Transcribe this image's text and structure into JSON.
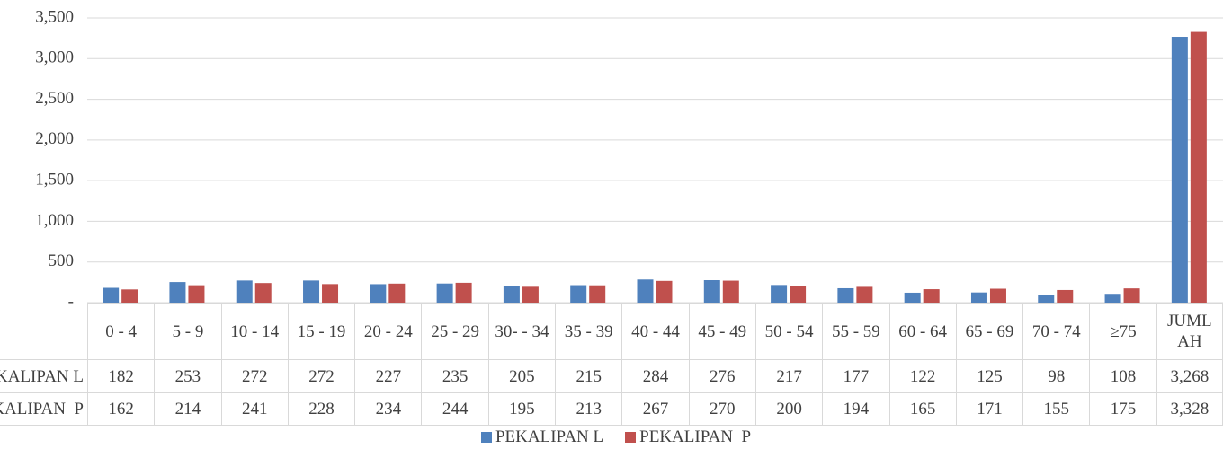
{
  "chart_data": {
    "type": "bar",
    "categories": [
      "0 - 4",
      "5 - 9",
      "10 - 14",
      "15 - 19",
      "20 - 24",
      "25 - 29",
      "30- - 34",
      "35 - 39",
      "40 - 44",
      "45 - 49",
      "50 - 54",
      "55 - 59",
      "60 - 64",
      "65 - 69",
      "70 - 74",
      "≥75",
      "JUMLAH"
    ],
    "series": [
      {
        "name": "PEKALIPAN L",
        "color": "#4f81bd",
        "values": [
          182,
          253,
          272,
          272,
          227,
          235,
          205,
          215,
          284,
          276,
          217,
          177,
          122,
          125,
          98,
          108,
          3268
        ],
        "value_labels": [
          "182",
          "253",
          "272",
          "272",
          "227",
          "235",
          "205",
          "215",
          "284",
          "276",
          "217",
          "177",
          "122",
          "125",
          "98",
          "108",
          "3,268"
        ]
      },
      {
        "name": "PEKALIPAN  P",
        "color": "#c0504d",
        "values": [
          162,
          214,
          241,
          228,
          234,
          244,
          195,
          213,
          267,
          270,
          200,
          194,
          165,
          171,
          155,
          175,
          3328
        ],
        "value_labels": [
          "162",
          "214",
          "241",
          "228",
          "234",
          "244",
          "195",
          "213",
          "267",
          "270",
          "200",
          "194",
          "165",
          "171",
          "155",
          "175",
          "3,328"
        ]
      }
    ],
    "ylim": [
      0,
      3500
    ],
    "yticks": [
      {
        "value": 0,
        "label": "-"
      },
      500,
      {
        "value": 1000,
        "label": "1,000"
      },
      {
        "value": 1500,
        "label": "1,500"
      },
      {
        "value": 2000,
        "label": "2,000"
      },
      {
        "value": 2500,
        "label": "2,500"
      },
      {
        "value": 3000,
        "label": "3,000"
      },
      {
        "value": 3500,
        "label": "3,500"
      }
    ],
    "grid": true,
    "legend": "bottom"
  }
}
